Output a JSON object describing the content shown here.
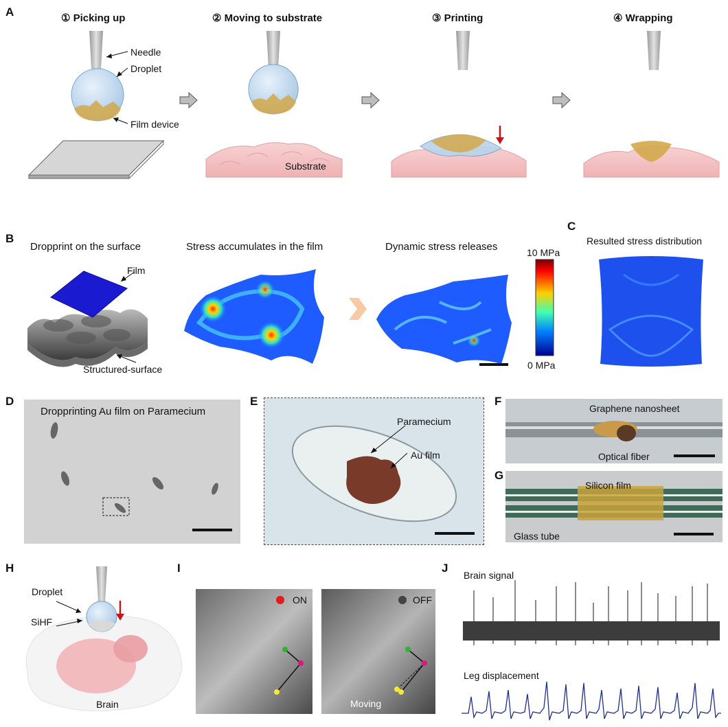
{
  "panels": {
    "A": "A",
    "B": "B",
    "C": "C",
    "D": "D",
    "E": "E",
    "F": "F",
    "G": "G",
    "H": "H",
    "I": "I",
    "J": "J"
  },
  "panelA": {
    "steps": [
      "① Picking up",
      "② Moving to substrate",
      "③ Printing",
      "④ Wrapping"
    ],
    "labels": {
      "needle": "Needle",
      "droplet": "Droplet",
      "film_device": "Film device",
      "substrate": "Substrate"
    }
  },
  "panelB": {
    "titles": [
      "Dropprint on the surface",
      "Stress accumulates in the film",
      "Dynamic stress releases"
    ],
    "labels": {
      "film": "Film",
      "structured_surface": "Structured-surface"
    },
    "colorbar": {
      "max": "10 MPa",
      "min": "0 MPa"
    }
  },
  "panelC": {
    "title": "Resulted stress distribution"
  },
  "panelD": {
    "title": "Dropprinting Au film on Paramecium"
  },
  "panelE": {
    "labels": {
      "paramecium": "Paramecium",
      "au_film": "Au film"
    }
  },
  "panelF": {
    "labels": {
      "graphene": "Graphene nanosheet",
      "optical_fiber": "Optical fiber"
    }
  },
  "panelG": {
    "labels": {
      "silicon_film": "Silicon film",
      "glass_tube": "Glass tube"
    }
  },
  "panelH": {
    "labels": {
      "droplet": "Droplet",
      "sihf": "SiHF",
      "brain": "Brain"
    }
  },
  "panelI": {
    "on_label": "ON",
    "off_label": "OFF",
    "moving_label": "Moving"
  },
  "panelJ": {
    "brain_signal": "Brain signal",
    "leg_displacement": "Leg displacement"
  },
  "colors": {
    "accent_red": "#c0171b",
    "signal_blue": "#1f2f8c",
    "droplet_blue": "#c9dff2",
    "film_gold": "#d4a84a",
    "tissue_pink": "#f3c3c4"
  }
}
